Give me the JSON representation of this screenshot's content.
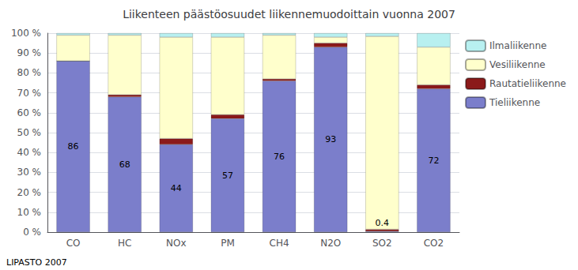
{
  "chart_data": {
    "type": "bar",
    "title": "Liikenteen päästöosuudet liikennemuodoittain vuonna 2007",
    "categories": [
      "CO",
      "HC",
      "NOx",
      "PM",
      "CH4",
      "N2O",
      "SO2",
      "CO2"
    ],
    "series": [
      {
        "name": "Tieliikenne",
        "color": "#7b7ecb",
        "values": [
          86,
          68,
          44,
          57,
          76,
          93,
          0.4,
          72
        ],
        "data_labels": true
      },
      {
        "name": "Rautatieliikenne",
        "color": "#8b1a1a",
        "values": [
          0,
          1,
          3,
          2,
          1,
          2,
          1,
          2
        ]
      },
      {
        "name": "Vesiliikenne",
        "color": "#ffffcc",
        "values": [
          13,
          30,
          51,
          39,
          22,
          3,
          97,
          19
        ]
      },
      {
        "name": "Ilmaliikenne",
        "color": "#b8f0f0",
        "values": [
          1,
          1,
          2,
          2,
          1,
          2,
          1.6,
          7
        ]
      }
    ],
    "stacked": true,
    "ylim": [
      0,
      100
    ],
    "yticks": [
      {
        "value": 0,
        "label": "0 %"
      },
      {
        "value": 10,
        "label": "10 %"
      },
      {
        "value": 20,
        "label": "20 %"
      },
      {
        "value": 30,
        "label": "30 %"
      },
      {
        "value": 40,
        "label": "40 %"
      },
      {
        "value": 50,
        "label": "50 %"
      },
      {
        "value": 60,
        "label": "60 %"
      },
      {
        "value": 70,
        "label": "70 %"
      },
      {
        "value": 80,
        "label": "80 %"
      },
      {
        "value": 90,
        "label": "90 %"
      },
      {
        "value": 100,
        "label": "100 %"
      }
    ],
    "grid": true,
    "legend": "right",
    "annotations": [
      "LIPASTO 2007"
    ]
  }
}
